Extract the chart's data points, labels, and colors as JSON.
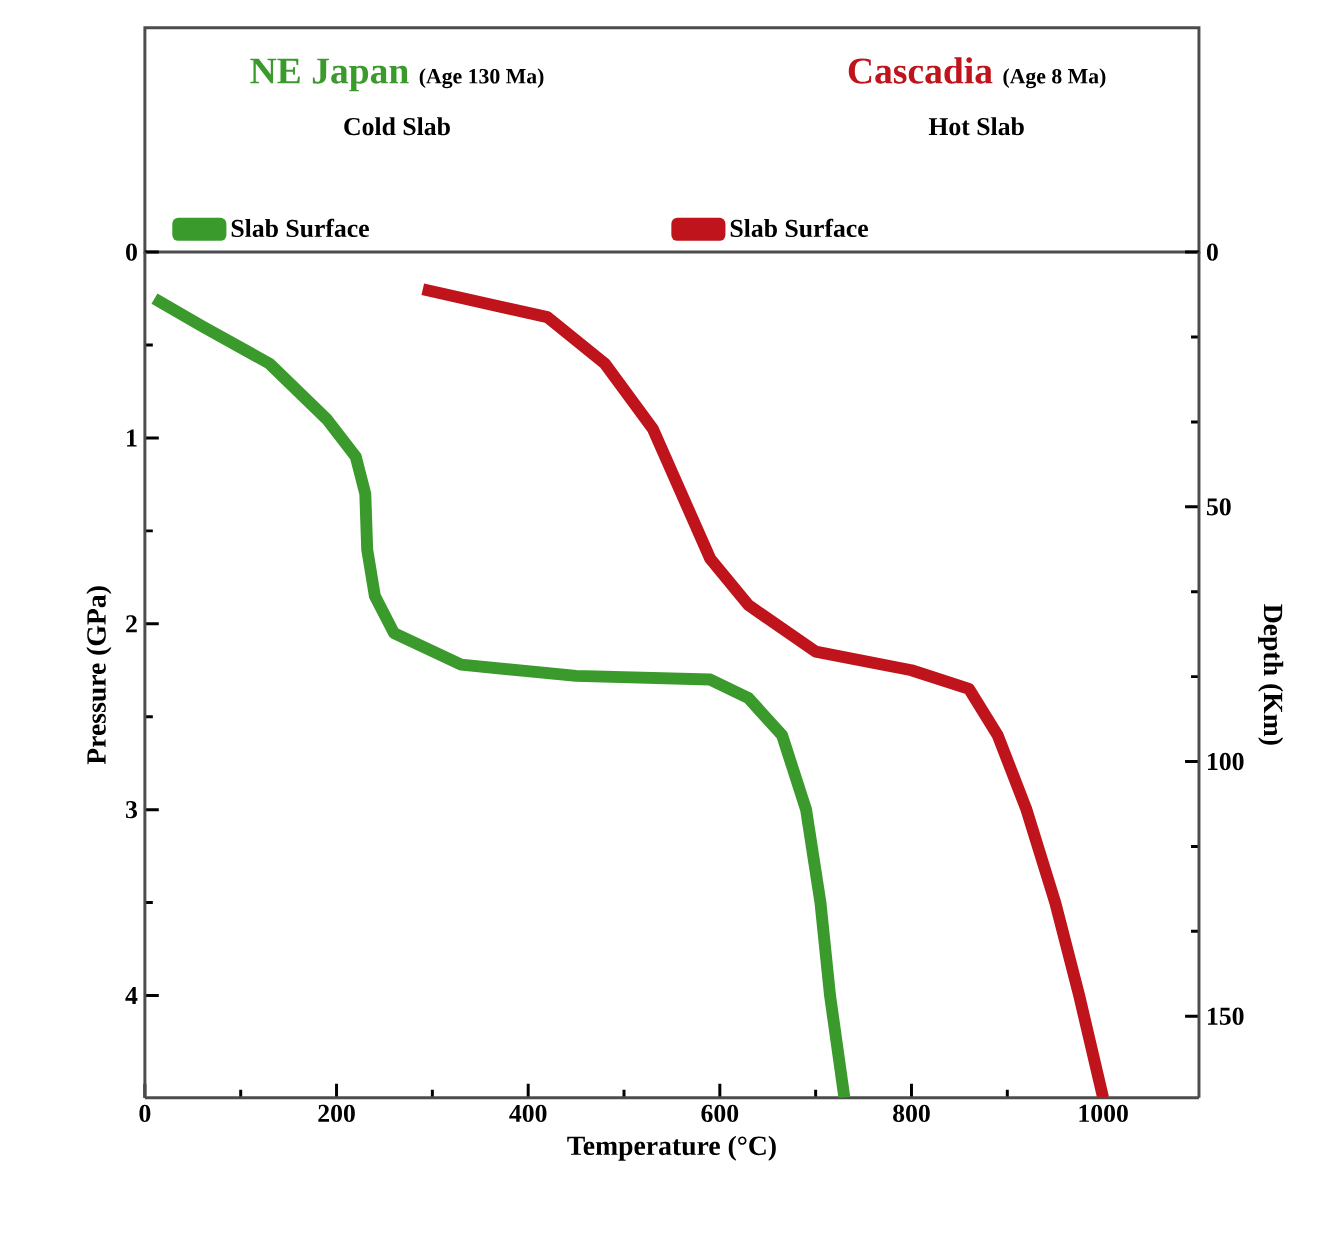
{
  "chart_data": {
    "type": "line",
    "xlabel": "Temperature (°C)",
    "ylabel": "Pressure (GPa)",
    "y2label": "Depth (Km)",
    "annotations": [
      "NE Japan",
      "(Age 130 Ma)",
      "Cold Slab",
      "Cascadia",
      "(Age 8 Ma)",
      "Hot Slab"
    ],
    "xlim": [
      0,
      1100
    ],
    "xticks": [
      0,
      200,
      400,
      600,
      800,
      1000
    ],
    "ylim": [
      4.55,
      0
    ],
    "yticks": [
      0,
      1,
      2,
      3,
      4
    ],
    "y2lim": [
      166,
      0
    ],
    "y2ticks": [
      0,
      50,
      100,
      150
    ],
    "legend": "top",
    "series": [
      {
        "name": "Slab Surface",
        "color": "#3a9a2c",
        "x": [
          10,
          60,
          130,
          190,
          220,
          230,
          232,
          240,
          260,
          330,
          450,
          590,
          630,
          665,
          690,
          705,
          715,
          730
        ],
        "values": [
          0.25,
          0.4,
          0.6,
          0.9,
          1.1,
          1.3,
          1.6,
          1.85,
          2.05,
          2.22,
          2.28,
          2.3,
          2.4,
          2.6,
          3.0,
          3.5,
          4.0,
          4.55
        ]
      },
      {
        "name": "Slab Surface",
        "color": "#c0141c",
        "x": [
          290,
          420,
          480,
          530,
          560,
          590,
          630,
          700,
          800,
          860,
          890,
          920,
          950,
          975,
          1000
        ],
        "values": [
          0.2,
          0.35,
          0.6,
          0.95,
          1.3,
          1.65,
          1.9,
          2.15,
          2.25,
          2.35,
          2.6,
          3.0,
          3.5,
          4.0,
          4.55
        ]
      }
    ]
  }
}
